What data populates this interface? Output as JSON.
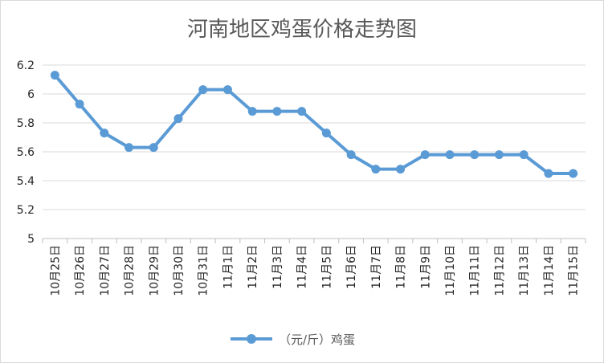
{
  "chart_data": {
    "type": "line",
    "title": "河南地区鸡蛋价格走势图",
    "categories": [
      "10月25日",
      "10月26日",
      "10月27日",
      "10月28日",
      "10月29日",
      "10月30日",
      "10月31日",
      "11月1日",
      "11月2日",
      "11月3日",
      "11月4日",
      "11月5日",
      "11月6日",
      "11月7日",
      "11月8日",
      "11月9日",
      "11月10日",
      "11月11日",
      "11月12日",
      "11月13日",
      "11月14日",
      "11月15日"
    ],
    "series": [
      {
        "name": "（元/斤）鸡蛋",
        "color": "#5b9bd5",
        "values": [
          6.13,
          5.93,
          5.73,
          5.63,
          5.63,
          5.83,
          6.03,
          6.03,
          5.88,
          5.88,
          5.88,
          5.73,
          5.58,
          5.48,
          5.48,
          5.58,
          5.58,
          5.58,
          5.58,
          5.58,
          5.45,
          5.45
        ]
      }
    ],
    "yticks": [
      "5",
      "5.2",
      "5.4",
      "5.6",
      "5.8",
      "6",
      "6.2"
    ],
    "ylim": [
      5,
      6.2
    ],
    "grid": true,
    "legend_position": "bottom"
  }
}
